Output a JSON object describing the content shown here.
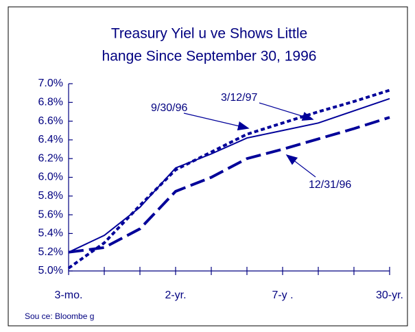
{
  "chart_data": {
    "type": "line",
    "title": [
      "Treasury Yiel      u ve Shows Little",
      "hange Since September 30, 1996"
    ],
    "categories": [
      "3-mo.",
      null,
      null,
      "2-yr.",
      null,
      null,
      "7-y .",
      null,
      null,
      "30-yr."
    ],
    "series": [
      {
        "name": "9/30/96",
        "color": "#000099",
        "dash": "solid",
        "values": [
          5.2,
          5.38,
          5.68,
          6.1,
          6.25,
          6.42,
          6.5,
          6.58,
          6.71,
          6.84
        ]
      },
      {
        "name": "3/12/97",
        "color": "#000099",
        "dash": "dotted",
        "values": [
          5.03,
          5.3,
          5.7,
          6.08,
          6.27,
          6.46,
          6.58,
          6.7,
          6.81,
          6.93
        ]
      },
      {
        "name": "12/31/96",
        "color": "#000099",
        "dash": "dashed",
        "values": [
          5.2,
          5.25,
          5.45,
          5.85,
          6.0,
          6.2,
          6.3,
          6.41,
          6.52,
          6.64
        ]
      }
    ],
    "ylim": [
      5.0,
      7.0
    ],
    "yticks": [
      {
        "value": 5.0,
        "label": "5.0%"
      },
      {
        "value": 5.2,
        "label": "5.2%"
      },
      {
        "value": 5.4,
        "label": "5.4%"
      },
      {
        "value": 5.6,
        "label": "5.6%"
      },
      {
        "value": 5.8,
        "label": "5.8%"
      },
      {
        "value": 6.0,
        "label": "6.0%"
      },
      {
        "value": 6.2,
        "label": "6.2%"
      },
      {
        "value": 6.4,
        "label": "6.4%"
      },
      {
        "value": 6.6,
        "label": "6.6%"
      },
      {
        "value": 6.8,
        "label": "6.8%"
      },
      {
        "value": 7.0,
        "label": "7.0%"
      }
    ],
    "source": "Sou ce: Bloombe g"
  }
}
